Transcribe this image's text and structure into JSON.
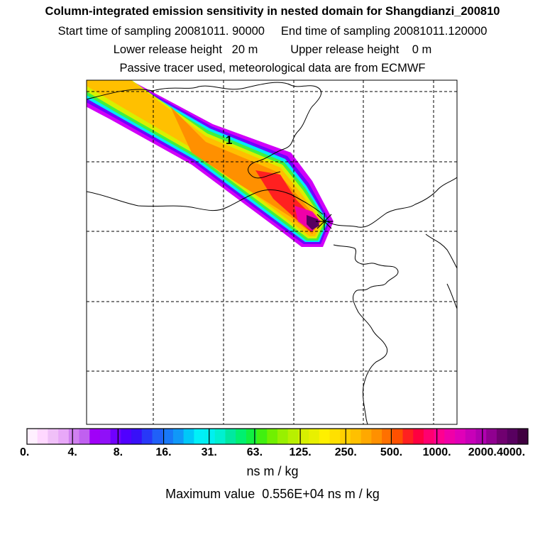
{
  "title": "Column-integrated emission sensitivity in nested domain for Shangdianzi_200810",
  "line2": "Start time of sampling 20081011. 90000     End time of sampling 20081011.120000",
  "line3": "Lower release height   20 m          Upper release height    0 m",
  "line4": "Passive tracer used, meteorological data are from ECMWF",
  "map": {
    "contour_label": "1",
    "release_marker": "station-marker-icon"
  },
  "colorbar": {
    "tick_labels": [
      "0.",
      "4.",
      "8.",
      "16.",
      "31.",
      "63.",
      "125.",
      "250.",
      "500.",
      "1000.",
      "2000.",
      "4000."
    ],
    "colors": [
      "#fff0ff",
      "#ffd8ff",
      "#f0c0f8",
      "#e8a8f8",
      "#d080f0",
      "#c060f0",
      "#a000f8",
      "#9010f8",
      "#7000ff",
      "#5000ff",
      "#3810f8",
      "#2838f8",
      "#2060f8",
      "#1878f8",
      "#1098f8",
      "#00c8f8",
      "#00f0f8",
      "#00f0f0",
      "#00f0d0",
      "#00e8a0",
      "#00f070",
      "#10f040",
      "#40f010",
      "#70f000",
      "#98f000",
      "#b8f000",
      "#d8f000",
      "#e8f000",
      "#fff000",
      "#ffe000",
      "#ffd000",
      "#ffc000",
      "#ffa800",
      "#ff9000",
      "#ff7000",
      "#ff5000",
      "#ff2020",
      "#ff0040",
      "#ff0070",
      "#ff0090",
      "#f000a8",
      "#e000b8",
      "#c800b8",
      "#b000b0",
      "#900090",
      "#700070",
      "#580060",
      "#400040"
    ],
    "units": "ns m / kg"
  },
  "max_value_text": "Maximum value  0.556E+04 ns m / kg"
}
